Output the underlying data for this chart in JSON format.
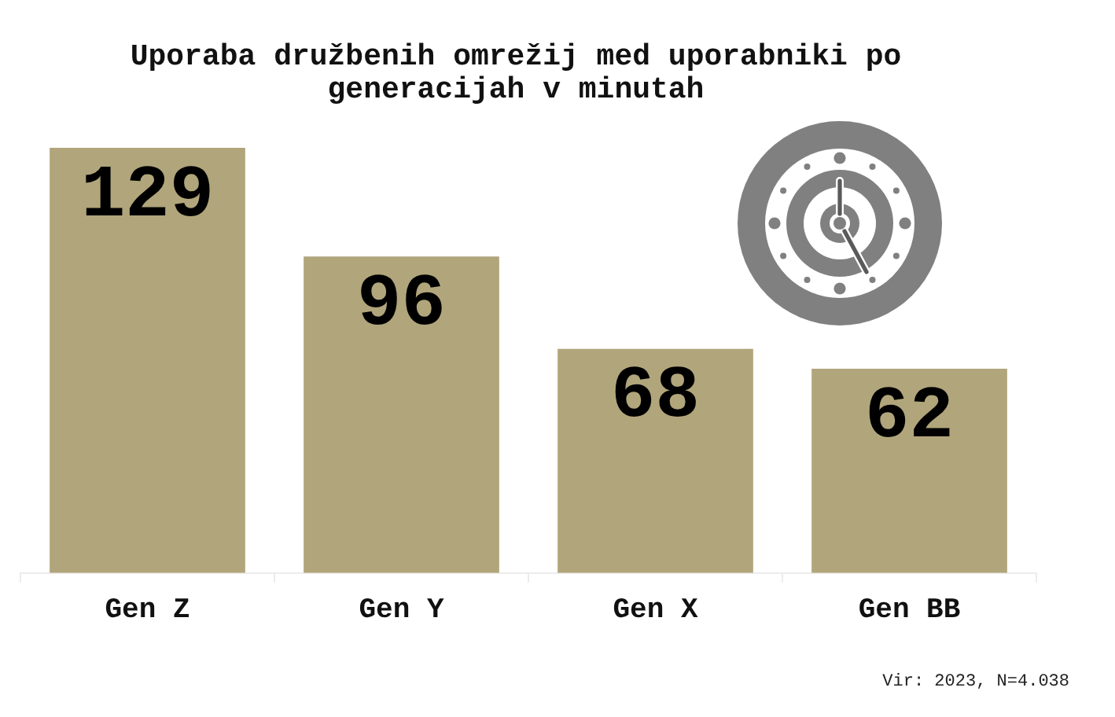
{
  "chart_data": {
    "type": "bar",
    "title": "Uporaba družbenih omrežij med uporabniki po generacijah v minutah",
    "categories": [
      "Gen Z",
      "Gen Y",
      "Gen X",
      "Gen BB"
    ],
    "values": [
      129,
      96,
      68,
      62
    ],
    "color": "#b1a57b",
    "data_labels": true,
    "grid": false,
    "legend": false,
    "tick_labels": "x",
    "annotations": [
      "Vir: 2023, N=4.038"
    ]
  }
}
